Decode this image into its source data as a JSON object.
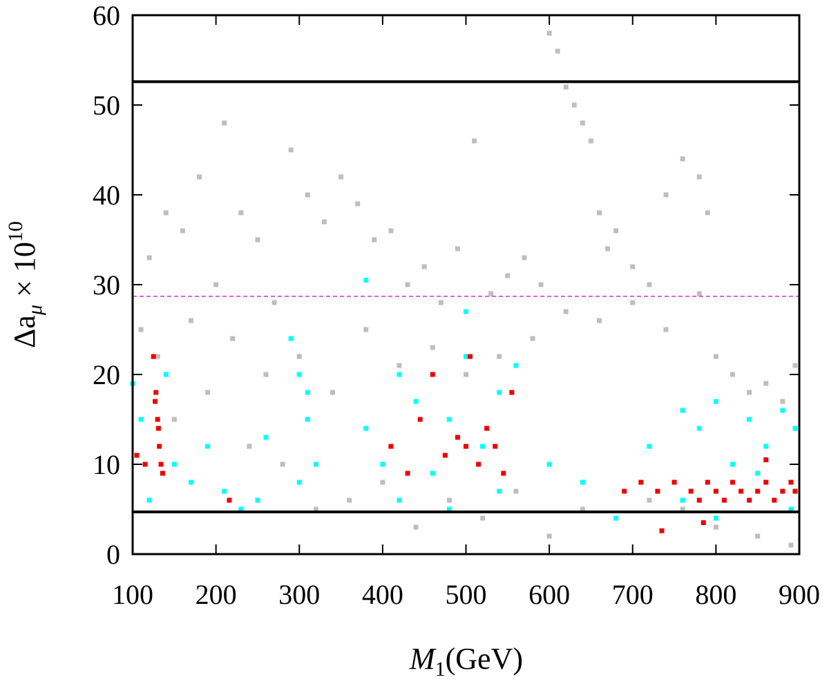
{
  "chart_data": {
    "type": "scatter",
    "xlabel": {
      "base": "M",
      "sub": "1",
      "rest": "(GeV)"
    },
    "ylabel": {
      "base": "Δa",
      "sub": "μ",
      "mid": " × 10",
      "sup": "10"
    },
    "xlim": [
      100,
      900
    ],
    "ylim": [
      0,
      60
    ],
    "xticks": [
      100,
      200,
      300,
      400,
      500,
      600,
      700,
      800,
      900
    ],
    "yticks": [
      0,
      10,
      20,
      30,
      40,
      50,
      60
    ],
    "series": [
      {
        "color": "#bebebe",
        "x": [
          110,
          120,
          140,
          160,
          180,
          200,
          210,
          230,
          250,
          270,
          290,
          310,
          330,
          350,
          370,
          390,
          410,
          430,
          450,
          470,
          490,
          510,
          530,
          550,
          570,
          590,
          600,
          610,
          620,
          630,
          640,
          650,
          660,
          670,
          680,
          700,
          720,
          740,
          760,
          780,
          790,
          800,
          820,
          840,
          860,
          880,
          895,
          150,
          190,
          240,
          280,
          320,
          360,
          400,
          440,
          480,
          520,
          560,
          600,
          640,
          680,
          720,
          760,
          800,
          850,
          890,
          130,
          170,
          220,
          260,
          300,
          340,
          380,
          420,
          460,
          500,
          540,
          580,
          620,
          660,
          700,
          740,
          780
        ],
        "values": [
          25,
          33,
          38,
          36,
          42,
          30,
          48,
          38,
          35,
          28,
          45,
          40,
          37,
          42,
          39,
          35,
          36,
          30,
          32,
          28,
          34,
          46,
          29,
          31,
          33,
          30,
          58,
          56,
          52,
          50,
          48,
          46,
          38,
          34,
          36,
          32,
          30,
          40,
          44,
          42,
          38,
          22,
          20,
          18,
          19,
          17,
          21,
          15,
          18,
          12,
          10,
          5,
          6,
          8,
          3,
          6,
          4,
          7,
          2,
          5,
          4,
          6,
          5,
          3,
          2,
          1,
          22,
          26,
          24,
          20,
          22,
          18,
          25,
          21,
          23,
          20,
          22,
          24,
          27,
          26,
          28,
          25,
          29
        ]
      },
      {
        "color": "#00ffff",
        "x": [
          100,
          110,
          120,
          140,
          150,
          170,
          190,
          210,
          230,
          250,
          260,
          290,
          300,
          310,
          320,
          300,
          310,
          380,
          400,
          420,
          440,
          460,
          480,
          500,
          520,
          540,
          560,
          420,
          480,
          540,
          600,
          640,
          680,
          720,
          760,
          780,
          800,
          820,
          840,
          860,
          880,
          895,
          760,
          800,
          850,
          890,
          500,
          380
        ],
        "values": [
          19,
          15,
          6,
          20,
          10,
          8,
          12,
          7,
          5,
          6,
          13,
          24,
          20,
          15,
          10,
          8,
          18,
          14,
          10,
          20,
          17,
          9,
          15,
          22,
          12,
          18,
          21,
          6,
          5,
          7,
          10,
          8,
          4,
          12,
          16,
          14,
          17,
          10,
          15,
          12,
          16,
          14,
          6,
          4,
          9,
          5,
          27,
          30.5
        ]
      },
      {
        "color": "#ee0000",
        "x": [
          105,
          115,
          125,
          128,
          130,
          132,
          134,
          136,
          131,
          127,
          216,
          430,
          445,
          460,
          475,
          490,
          500,
          505,
          515,
          525,
          535,
          545,
          555,
          410,
          690,
          710,
          730,
          750,
          770,
          780,
          790,
          800,
          810,
          820,
          830,
          840,
          850,
          860,
          870,
          880,
          890,
          895,
          735,
          785,
          860
        ],
        "values": [
          11,
          10,
          22,
          18,
          15,
          12,
          10,
          9,
          14,
          17,
          6,
          9,
          15,
          20,
          11,
          13,
          12,
          22,
          10,
          14,
          12,
          9,
          18,
          12,
          7,
          8,
          7,
          8,
          7,
          6,
          8,
          7,
          6,
          8,
          7,
          6,
          7,
          8,
          6,
          7,
          8,
          7,
          2.6,
          3.5,
          10.5
        ]
      }
    ],
    "hlines": [
      {
        "value": 52.6,
        "color": "#000000",
        "style": "solid"
      },
      {
        "value": 4.7,
        "color": "#000000",
        "style": "solid"
      },
      {
        "value": 28.7,
        "color": "#cc33cc",
        "style": "dashed"
      }
    ]
  }
}
